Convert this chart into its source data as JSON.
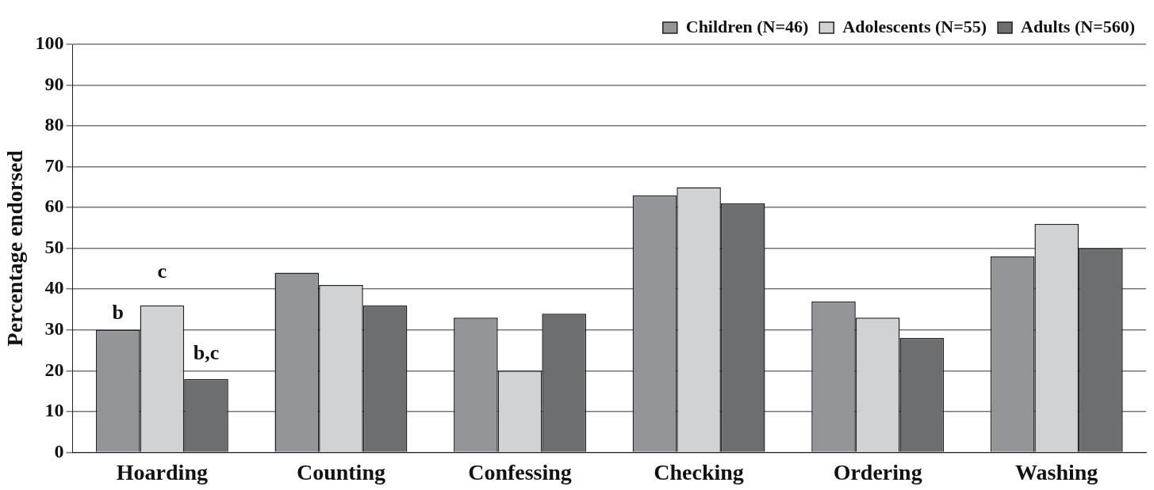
{
  "chart_data": {
    "type": "bar",
    "ylabel": "Percentage endorsed",
    "categories": [
      "Hoarding",
      "Counting",
      "Confessing",
      "Checking",
      "Ordering",
      "Washing"
    ],
    "series": [
      {
        "name": "Children (N=46)",
        "color": "#939598",
        "values": [
          30,
          44,
          33,
          63,
          37,
          48
        ]
      },
      {
        "name": "Adolescents (N=55)",
        "color": "#d1d2d4",
        "values": [
          36,
          41,
          20,
          65,
          33,
          56
        ]
      },
      {
        "name": "Adults (N=560)",
        "color": "#6d6e70",
        "values": [
          18,
          36,
          34,
          61,
          28,
          50
        ]
      }
    ],
    "ylim": [
      0,
      100
    ],
    "yticks": [
      0,
      10,
      20,
      30,
      40,
      50,
      60,
      70,
      80,
      90,
      100
    ],
    "grid": "y",
    "legend": "top right",
    "annotations": [
      "b",
      "c",
      "b,c"
    ]
  }
}
